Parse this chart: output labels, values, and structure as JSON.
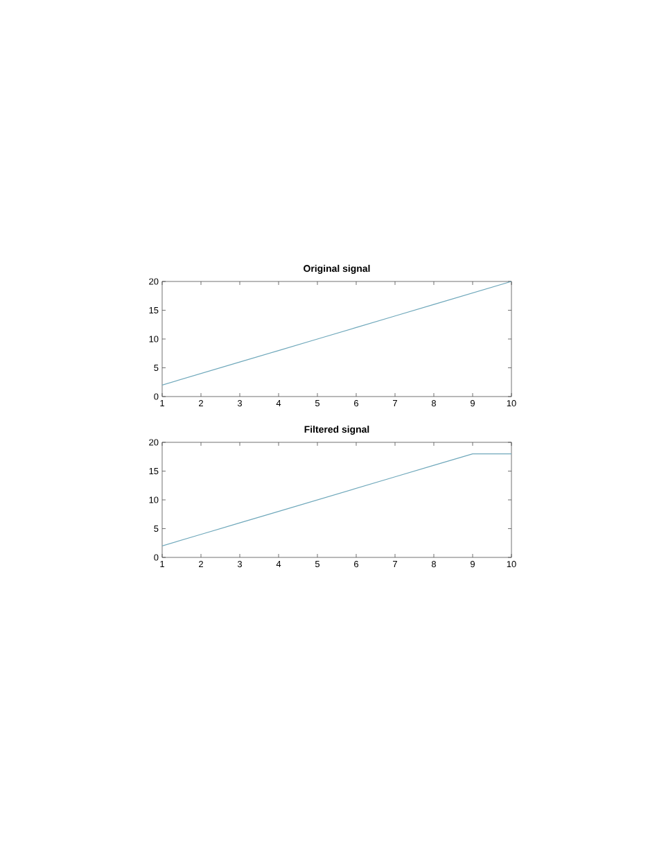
{
  "chart_data": [
    {
      "type": "line",
      "title": "Original signal",
      "x": [
        1,
        2,
        3,
        4,
        5,
        6,
        7,
        8,
        9,
        10
      ],
      "xlim": [
        1,
        10
      ],
      "ylim": [
        0,
        20
      ],
      "xticks": [
        1,
        2,
        3,
        4,
        5,
        6,
        7,
        8,
        9,
        10
      ],
      "yticks": [
        0,
        5,
        10,
        15,
        20
      ],
      "series": [
        {
          "color": "#6fa8bb",
          "values": [
            2,
            4,
            6,
            8,
            10,
            12,
            14,
            16,
            18,
            20
          ]
        }
      ]
    },
    {
      "type": "line",
      "title": "Filtered signal",
      "x": [
        1,
        2,
        3,
        4,
        5,
        6,
        7,
        8,
        9,
        10
      ],
      "xlim": [
        1,
        10
      ],
      "ylim": [
        0,
        20
      ],
      "xticks": [
        1,
        2,
        3,
        4,
        5,
        6,
        7,
        8,
        9,
        10
      ],
      "yticks": [
        0,
        5,
        10,
        15,
        20
      ],
      "series": [
        {
          "color": "#6fa8bb",
          "values": [
            2,
            4,
            6,
            8,
            10,
            12,
            14,
            16,
            18,
            18
          ]
        }
      ]
    }
  ]
}
